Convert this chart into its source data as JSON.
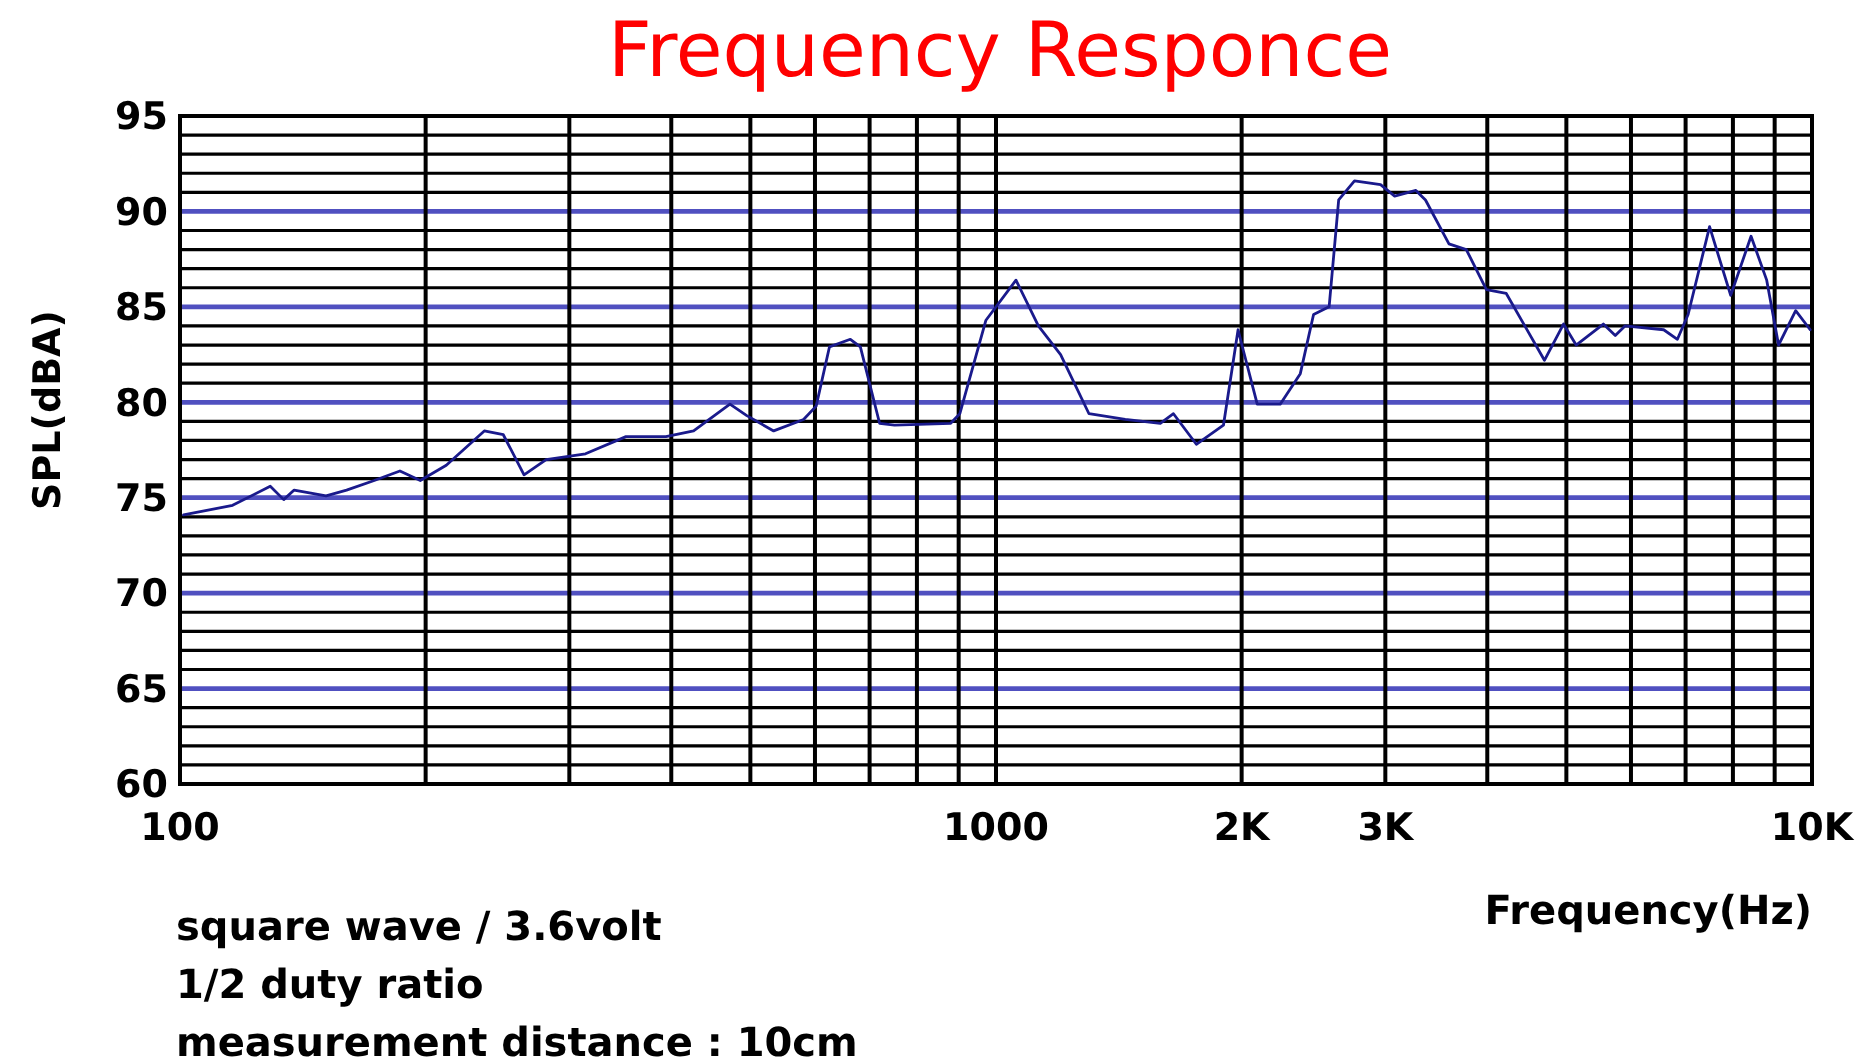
{
  "chart_data": {
    "type": "line",
    "title": "Frequency Responce",
    "xlabel": "Frequency(Hz)",
    "ylabel": "SPL(dBA)",
    "annotations": [
      "square wave / 3.6volt",
      "1/2 duty ratio",
      "measurement distance : 10cm"
    ],
    "log": "x",
    "grid": true,
    "marker": "none",
    "line_style": "solid",
    "xlim": [
      100,
      10000
    ],
    "xticks": [
      100,
      {
        "value": 200,
        "label": null
      },
      {
        "value": 300,
        "label": null
      },
      {
        "value": 400,
        "label": null
      },
      {
        "value": 500,
        "label": null
      },
      {
        "value": 600,
        "label": null
      },
      {
        "value": 700,
        "label": null
      },
      {
        "value": 800,
        "label": null
      },
      {
        "value": 900,
        "label": null
      },
      1000,
      {
        "value": 2000,
        "label": "2K"
      },
      {
        "value": 3000,
        "label": "3K"
      },
      {
        "value": 4000,
        "label": null
      },
      {
        "value": 5000,
        "label": null
      },
      {
        "value": 6000,
        "label": null
      },
      {
        "value": 7000,
        "label": null
      },
      {
        "value": 8000,
        "label": null
      },
      {
        "value": 9000,
        "label": null
      },
      {
        "value": 10000,
        "label": "10K"
      }
    ],
    "ylim": [
      60,
      95
    ],
    "yticks": [
      60,
      {
        "value": 61,
        "label": null
      },
      {
        "value": 62,
        "label": null
      },
      {
        "value": 63,
        "label": null
      },
      {
        "value": 64,
        "label": null
      },
      65,
      {
        "value": 66,
        "label": null
      },
      {
        "value": 67,
        "label": null
      },
      {
        "value": 68,
        "label": null
      },
      {
        "value": 69,
        "label": null
      },
      70,
      {
        "value": 71,
        "label": null
      },
      {
        "value": 72,
        "label": null
      },
      {
        "value": 73,
        "label": null
      },
      {
        "value": 74,
        "label": null
      },
      75,
      {
        "value": 76,
        "label": null
      },
      {
        "value": 77,
        "label": null
      },
      {
        "value": 78,
        "label": null
      },
      {
        "value": 79,
        "label": null
      },
      80,
      {
        "value": 81,
        "label": null
      },
      {
        "value": 82,
        "label": null
      },
      {
        "value": 83,
        "label": null
      },
      {
        "value": 84,
        "label": null
      },
      85,
      {
        "value": 86,
        "label": null
      },
      {
        "value": 87,
        "label": null
      },
      {
        "value": 88,
        "label": null
      },
      {
        "value": 89,
        "label": null
      },
      90,
      {
        "value": 91,
        "label": null
      },
      {
        "value": 92,
        "label": null
      },
      {
        "value": 93,
        "label": null
      },
      {
        "value": 94,
        "label": null
      },
      95
    ],
    "x": [
      101,
      116,
      129,
      134,
      138,
      151,
      160,
      173,
      186,
      197,
      212,
      236,
      249,
      264,
      281,
      314,
      352,
      394,
      426,
      472,
      495,
      534,
      581,
      602,
      625,
      663,
      682,
      720,
      751,
      880,
      903,
      972,
      1058,
      1127,
      1200,
      1300,
      1440,
      1590,
      1650,
      1760,
      1900,
      1980,
      2010,
      2090,
      2230,
      2360,
      2450,
      2560,
      2630,
      2750,
      2960,
      3080,
      3270,
      3360,
      3590,
      3770,
      3990,
      4220,
      4700,
      4960,
      5140,
      5550,
      5740,
      5900,
      6580,
      6840,
      7050,
      7490,
      7950,
      8420,
      8800,
      9100,
      9550,
      9950
    ],
    "series": [
      {
        "color": "#1a1a8c",
        "values": [
          74.1,
          74.6,
          75.6,
          74.9,
          75.4,
          75.1,
          75.4,
          75.9,
          76.4,
          75.9,
          76.7,
          78.5,
          78.3,
          76.2,
          77.0,
          77.3,
          78.2,
          78.2,
          78.5,
          79.9,
          79.3,
          78.5,
          79.1,
          79.8,
          82.9,
          83.3,
          82.9,
          78.9,
          78.8,
          78.9,
          79.4,
          84.3,
          86.4,
          84.0,
          82.5,
          79.4,
          79.1,
          78.9,
          79.4,
          77.8,
          78.8,
          83.8,
          82.7,
          79.9,
          79.9,
          81.5,
          84.6,
          85.0,
          90.6,
          91.6,
          91.4,
          90.8,
          91.1,
          90.6,
          88.3,
          88.0,
          85.9,
          85.7,
          82.2,
          84.1,
          83.0,
          84.1,
          83.5,
          84.0,
          83.8,
          83.3,
          84.6,
          89.2,
          85.6,
          88.7,
          86.4,
          83.0,
          84.8,
          83.8
        ]
      }
    ]
  }
}
